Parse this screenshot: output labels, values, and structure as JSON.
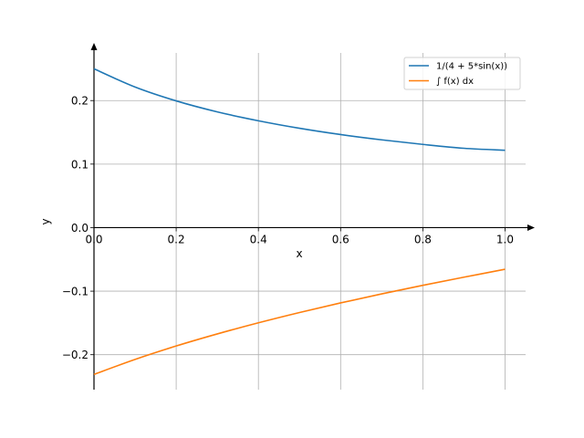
{
  "chart_data": {
    "type": "line",
    "title": "",
    "xlabel": "x",
    "ylabel": "y",
    "xlim": [
      0.0,
      1.05
    ],
    "ylim": [
      -0.255,
      0.275
    ],
    "xticks": [
      0.0,
      0.2,
      0.4,
      0.6,
      0.8,
      1.0
    ],
    "xtick_labels": [
      "0.0",
      "0.2",
      "0.4",
      "0.6",
      "0.8",
      "1.0"
    ],
    "yticks": [
      -0.2,
      -0.1,
      0.0,
      0.1,
      0.2
    ],
    "ytick_labels": [
      "−0.2",
      "−0.1",
      "0.0",
      "0.1",
      "0.2"
    ],
    "grid": true,
    "legend_position": "top-right",
    "series": [
      {
        "name": "1/(4 + 5*sin(x))",
        "color": "#1f77b4",
        "x": [
          0.0,
          0.1,
          0.2,
          0.3,
          0.4,
          0.5,
          0.6,
          0.7,
          0.8,
          0.9,
          1.0
        ],
        "y": [
          0.25,
          0.2213,
          0.1995,
          0.1822,
          0.1682,
          0.1564,
          0.1465,
          0.1382,
          0.131,
          0.1249,
          0.1218
        ]
      },
      {
        "name": "∫ f(x) dx",
        "color": "#ff7f0e",
        "x": [
          0.0,
          0.1,
          0.2,
          0.3,
          0.4,
          0.5,
          0.6,
          0.7,
          0.8,
          0.9,
          1.0
        ],
        "y": [
          -0.231,
          -0.2074,
          -0.1863,
          -0.1673,
          -0.1498,
          -0.1336,
          -0.1185,
          -0.1043,
          -0.0908,
          -0.078,
          -0.0655
        ]
      }
    ]
  }
}
